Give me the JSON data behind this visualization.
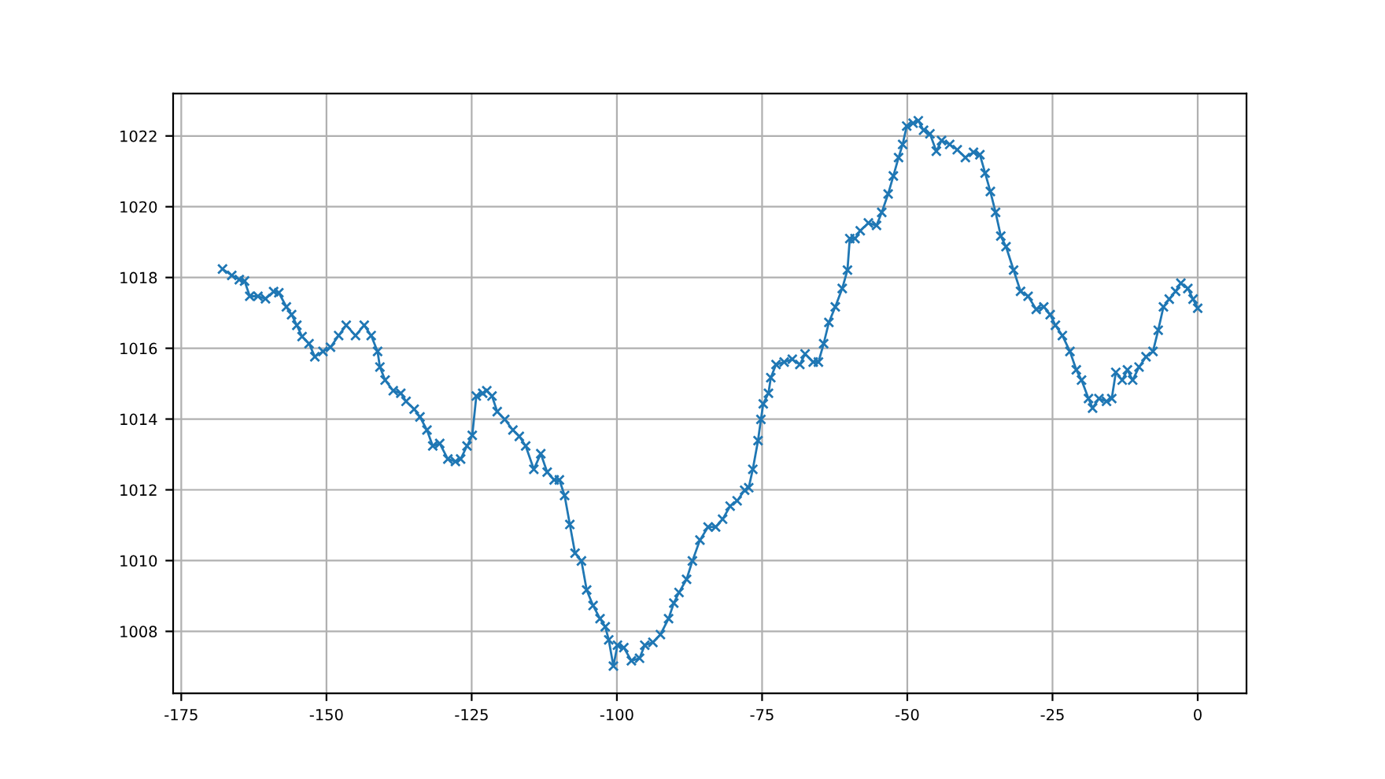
{
  "chart_data": {
    "type": "line",
    "marker": "cross",
    "line_style": "solid",
    "grid": true,
    "xlim": [
      -176.4,
      8.4
    ],
    "ylim": [
      1006.25,
      1023.2
    ],
    "xticks": [
      -175,
      -150,
      -125,
      -100,
      -75,
      -50,
      -25,
      0
    ],
    "yticks": [
      1008,
      1010,
      1012,
      1014,
      1016,
      1018,
      1020,
      1022
    ],
    "series": [
      {
        "color": "#1f77b4",
        "x": [
          -167.9,
          -166.3,
          -165.0,
          -164.1,
          -163.2,
          -161.8,
          -160.5,
          -159.1,
          -158.2,
          -156.9,
          -156.0,
          -155.1,
          -154.2,
          -153.0,
          -152.0,
          -150.6,
          -149.3,
          -147.9,
          -146.6,
          -145.0,
          -143.5,
          -142.3,
          -141.2,
          -140.8,
          -139.9,
          -138.5,
          -137.2,
          -136.3,
          -134.9,
          -133.9,
          -132.7,
          -131.7,
          -130.5,
          -129.1,
          -127.8,
          -126.9,
          -125.8,
          -124.9,
          -124.2,
          -123.1,
          -122.4,
          -121.5,
          -120.6,
          -119.3,
          -117.9,
          -116.8,
          -115.7,
          -114.3,
          -113.1,
          -112.0,
          -110.8,
          -109.9,
          -109.0,
          -108.1,
          -107.2,
          -106.1,
          -105.2,
          -104.1,
          -102.9,
          -102.0,
          -101.4,
          -100.6,
          -99.9,
          -98.8,
          -97.5,
          -96.1,
          -95.2,
          -93.8,
          -92.5,
          -91.1,
          -90.2,
          -89.3,
          -88.0,
          -87.0,
          -85.7,
          -84.3,
          -83.0,
          -81.8,
          -80.5,
          -79.3,
          -78.0,
          -77.3,
          -76.6,
          -75.7,
          -75.2,
          -74.8,
          -73.9,
          -73.5,
          -72.6,
          -71.2,
          -69.8,
          -68.5,
          -67.6,
          -66.2,
          -65.3,
          -64.4,
          -63.5,
          -62.4,
          -61.2,
          -60.3,
          -59.9,
          -59.0,
          -58.1,
          -56.7,
          -55.3,
          -54.4,
          -53.3,
          -52.4,
          -51.5,
          -50.8,
          -50.1,
          -49.0,
          -48.1,
          -47.2,
          -46.1,
          -45.0,
          -44.1,
          -42.7,
          -41.4,
          -40.0,
          -38.6,
          -37.5,
          -36.6,
          -35.7,
          -34.8,
          -33.9,
          -33.0,
          -31.7,
          -30.5,
          -29.2,
          -27.8,
          -26.5,
          -25.4,
          -24.5,
          -23.3,
          -22.0,
          -20.9,
          -20.0,
          -18.8,
          -18.1,
          -17.0,
          -15.7,
          -14.8,
          -14.1,
          -13.0,
          -12.1,
          -11.2,
          -10.1,
          -8.9,
          -7.7,
          -6.8,
          -5.9,
          -4.9,
          -3.8,
          -2.9,
          -1.7,
          -0.8,
          0.0
        ],
        "values": [
          1018.24,
          1018.06,
          1017.94,
          1017.9,
          1017.47,
          1017.47,
          1017.4,
          1017.6,
          1017.57,
          1017.17,
          1016.95,
          1016.65,
          1016.33,
          1016.13,
          1015.76,
          1015.91,
          1016.03,
          1016.36,
          1016.65,
          1016.36,
          1016.65,
          1016.36,
          1015.91,
          1015.47,
          1015.1,
          1014.8,
          1014.73,
          1014.5,
          1014.28,
          1014.06,
          1013.69,
          1013.24,
          1013.31,
          1012.87,
          1012.8,
          1012.87,
          1013.24,
          1013.54,
          1014.65,
          1014.73,
          1014.8,
          1014.65,
          1014.21,
          1013.99,
          1013.69,
          1013.51,
          1013.24,
          1012.58,
          1013.02,
          1012.5,
          1012.28,
          1012.28,
          1011.84,
          1011.02,
          1010.21,
          1009.99,
          1009.17,
          1008.73,
          1008.36,
          1008.13,
          1007.76,
          1007.02,
          1007.61,
          1007.54,
          1007.17,
          1007.24,
          1007.61,
          1007.69,
          1007.91,
          1008.36,
          1008.8,
          1009.1,
          1009.47,
          1009.99,
          1010.58,
          1010.95,
          1010.95,
          1011.17,
          1011.54,
          1011.69,
          1011.99,
          1012.06,
          1012.58,
          1013.39,
          1013.99,
          1014.43,
          1014.73,
          1015.17,
          1015.54,
          1015.61,
          1015.69,
          1015.54,
          1015.84,
          1015.61,
          1015.61,
          1016.13,
          1016.73,
          1017.17,
          1017.69,
          1018.21,
          1019.1,
          1019.1,
          1019.32,
          1019.54,
          1019.47,
          1019.84,
          1020.36,
          1020.87,
          1021.39,
          1021.76,
          1022.28,
          1022.36,
          1022.43,
          1022.16,
          1022.06,
          1021.57,
          1021.87,
          1021.76,
          1021.61,
          1021.39,
          1021.54,
          1021.47,
          1020.95,
          1020.43,
          1019.84,
          1019.17,
          1018.87,
          1018.21,
          1017.61,
          1017.47,
          1017.1,
          1017.17,
          1016.95,
          1016.65,
          1016.36,
          1015.91,
          1015.39,
          1015.1,
          1014.58,
          1014.31,
          1014.58,
          1014.5,
          1014.58,
          1015.32,
          1015.1,
          1015.39,
          1015.1,
          1015.47,
          1015.76,
          1015.91,
          1016.51,
          1017.17,
          1017.39,
          1017.61,
          1017.84,
          1017.69,
          1017.39,
          1017.13
        ]
      }
    ]
  }
}
